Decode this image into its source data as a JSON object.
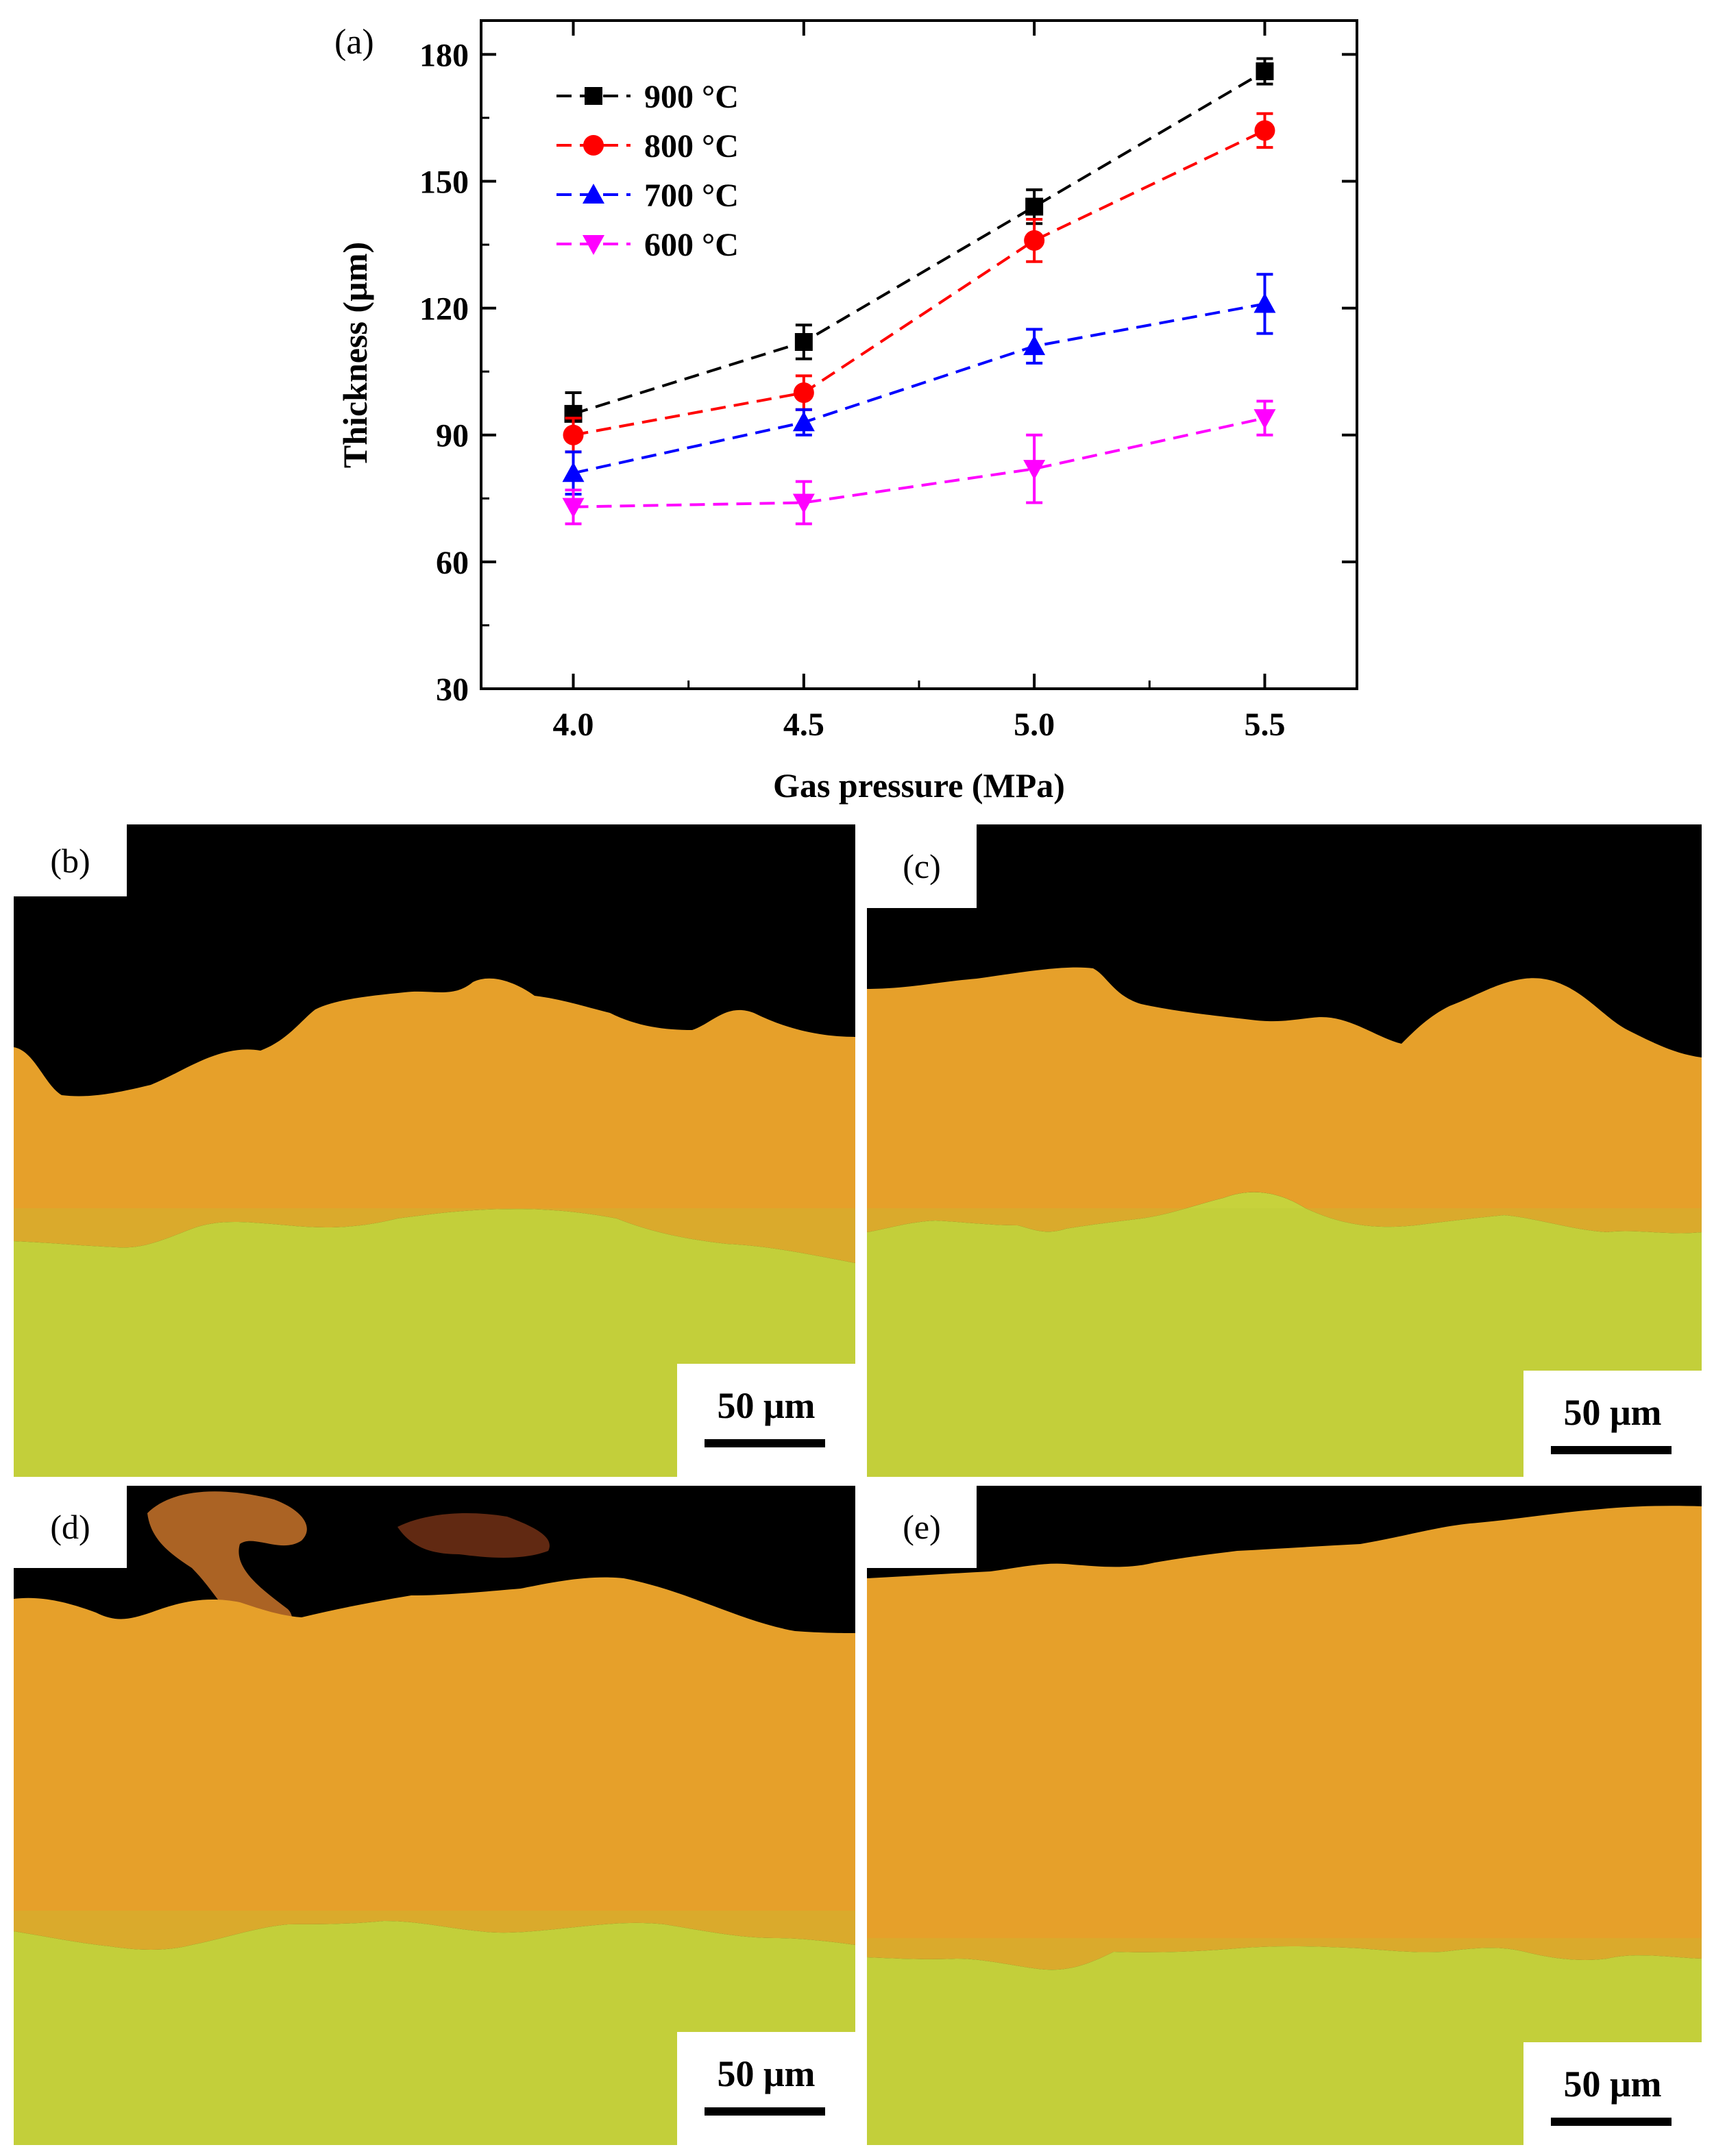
{
  "chart_data": {
    "type": "line",
    "panel_label": "(a)",
    "xlabel": "Gas pressure (MPa)",
    "ylabel": "Thickness (µm)",
    "x": [
      4.0,
      4.5,
      5.0,
      5.5
    ],
    "x_tick_labels": [
      "4.0",
      "4.5",
      "5.0",
      "5.5"
    ],
    "xlim": [
      3.8,
      5.7
    ],
    "ylim": [
      30,
      188
    ],
    "y_ticks": [
      30,
      60,
      90,
      120,
      150,
      180
    ],
    "y_tick_labels": [
      "30",
      "60",
      "90",
      "120",
      "150",
      "180"
    ],
    "legend_position": "top-left",
    "series": [
      {
        "name": "900 °C",
        "color": "#000000",
        "marker": "square",
        "values": [
          95,
          112,
          144,
          176
        ],
        "errors": [
          5,
          4,
          4,
          3
        ]
      },
      {
        "name": "800 °C",
        "color": "#ff0000",
        "marker": "circle",
        "values": [
          90,
          100,
          136,
          162
        ],
        "errors": [
          4,
          4,
          5,
          4
        ]
      },
      {
        "name": "700 °C",
        "color": "#0000ff",
        "marker": "triangle-up",
        "values": [
          81,
          93,
          111,
          121
        ],
        "errors": [
          5,
          3,
          4,
          7
        ]
      },
      {
        "name": "600 °C",
        "color": "#ff00ff",
        "marker": "triangle-down",
        "values": [
          73,
          74,
          82,
          94
        ],
        "errors": [
          4,
          5,
          8,
          4
        ]
      }
    ]
  },
  "micrographs": [
    {
      "label": "(b)",
      "scale_label": "50 μm",
      "coating_color": "#e8a12a",
      "substrate_color": "#c4d13a"
    },
    {
      "label": "(c)",
      "scale_label": "50 μm",
      "coating_color": "#e8a12a",
      "substrate_color": "#c4d13a"
    },
    {
      "label": "(d)",
      "scale_label": "50 μm",
      "coating_color": "#e8a12a",
      "substrate_color": "#c4d13a"
    },
    {
      "label": "(e)",
      "scale_label": "50 μm",
      "coating_color": "#e8a12a",
      "substrate_color": "#c4d13a"
    }
  ]
}
